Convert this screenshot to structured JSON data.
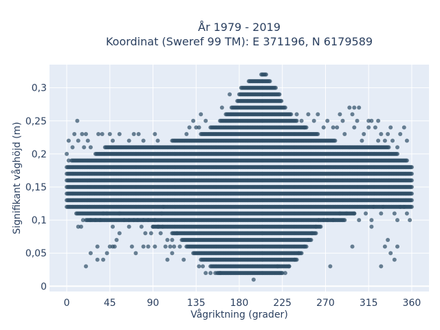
{
  "colors": {
    "plot_bg": "#e5ecf6",
    "grid": "#ffffff",
    "marker": "#2f4f66",
    "text": "#2a3f5f"
  },
  "chart_data": {
    "type": "scatter",
    "title_lines": [
      "År 1979 - 2019",
      "Koordinat (Sweref 99 TM): E 371196, N 6179589"
    ],
    "xlabel": "Vågriktning (grader)",
    "ylabel": "Signifikant våghöjd (m)",
    "xlim": [
      -18,
      378
    ],
    "ylim": [
      -0.008,
      0.335
    ],
    "xticks": [
      {
        "value": 0,
        "label": "0"
      },
      {
        "value": 45,
        "label": "45"
      },
      {
        "value": 90,
        "label": "90"
      },
      {
        "value": 135,
        "label": "135"
      },
      {
        "value": 180,
        "label": "180"
      },
      {
        "value": 225,
        "label": "225"
      },
      {
        "value": 270,
        "label": "270"
      },
      {
        "value": 315,
        "label": "315"
      },
      {
        "value": 360,
        "label": "360"
      }
    ],
    "yticks": [
      {
        "value": 0,
        "label": "0"
      },
      {
        "value": 0.05,
        "label": "0,05"
      },
      {
        "value": 0.1,
        "label": "0,1"
      },
      {
        "value": 0.15,
        "label": "0,15"
      },
      {
        "value": 0.2,
        "label": "0,2"
      },
      {
        "value": 0.25,
        "label": "0,25"
      },
      {
        "value": 0.3,
        "label": "0,3"
      }
    ],
    "grid": true,
    "marker_opacity": 0.7,
    "dense_bands": [
      {
        "y": 0.32,
        "x": [
          203,
          208
        ]
      },
      {
        "y": 0.31,
        "x": [
          190,
          212
        ]
      },
      {
        "y": 0.3,
        "x": [
          182,
          218
        ]
      },
      {
        "y": 0.29,
        "x": [
          180,
          222
        ]
      },
      {
        "y": 0.28,
        "x": [
          178,
          224
        ]
      },
      {
        "y": 0.27,
        "x": [
          172,
          228
        ]
      },
      {
        "y": 0.26,
        "x": [
          166,
          234
        ]
      },
      {
        "y": 0.25,
        "x": [
          160,
          240
        ]
      },
      {
        "y": 0.24,
        "x": [
          150,
          250
        ]
      },
      {
        "y": 0.23,
        "x": [
          140,
          262
        ]
      },
      {
        "y": 0.22,
        "x": [
          110,
          280
        ]
      },
      {
        "y": 0.21,
        "x": [
          40,
          336
        ]
      },
      {
        "y": 0.2,
        "x": [
          30,
          345
        ]
      },
      {
        "y": 0.19,
        "x": [
          5,
          355
        ]
      },
      {
        "y": 0.18,
        "x": [
          0,
          360
        ]
      },
      {
        "y": 0.17,
        "x": [
          0,
          360
        ]
      },
      {
        "y": 0.16,
        "x": [
          0,
          360
        ]
      },
      {
        "y": 0.15,
        "x": [
          0,
          360
        ]
      },
      {
        "y": 0.14,
        "x": [
          0,
          360
        ]
      },
      {
        "y": 0.13,
        "x": [
          0,
          360
        ]
      },
      {
        "y": 0.12,
        "x": [
          0,
          360
        ]
      },
      {
        "y": 0.11,
        "x": [
          10,
          300
        ]
      },
      {
        "y": 0.1,
        "x": [
          20,
          290
        ]
      },
      {
        "y": 0.09,
        "x": [
          90,
          265
        ]
      },
      {
        "y": 0.08,
        "x": [
          110,
          260
        ]
      },
      {
        "y": 0.07,
        "x": [
          120,
          255
        ]
      },
      {
        "y": 0.06,
        "x": [
          125,
          250
        ]
      },
      {
        "y": 0.05,
        "x": [
          132,
          245
        ]
      },
      {
        "y": 0.04,
        "x": [
          140,
          240
        ]
      },
      {
        "y": 0.03,
        "x": [
          150,
          232
        ]
      },
      {
        "y": 0.02,
        "x": [
          157,
          225
        ]
      }
    ],
    "scatter_points": [
      [
        11,
        0.25
      ],
      [
        8,
        0.23
      ],
      [
        16,
        0.23
      ],
      [
        20,
        0.23
      ],
      [
        33,
        0.23
      ],
      [
        37,
        0.23
      ],
      [
        45,
        0.23
      ],
      [
        55,
        0.23
      ],
      [
        70,
        0.23
      ],
      [
        75,
        0.23
      ],
      [
        92,
        0.23
      ],
      [
        2,
        0.22
      ],
      [
        12,
        0.22
      ],
      [
        22,
        0.22
      ],
      [
        48,
        0.22
      ],
      [
        65,
        0.22
      ],
      [
        80,
        0.22
      ],
      [
        95,
        0.22
      ],
      [
        0,
        0.2
      ],
      [
        2,
        0.19
      ],
      [
        6,
        0.21
      ],
      [
        18,
        0.21
      ],
      [
        25,
        0.21
      ],
      [
        12,
        0.09
      ],
      [
        15,
        0.09
      ],
      [
        17,
        0.1
      ],
      [
        25,
        0.1
      ],
      [
        30,
        0.1
      ],
      [
        35,
        0.1
      ],
      [
        38,
        0.11
      ],
      [
        42,
        0.11
      ],
      [
        55,
        0.11
      ],
      [
        60,
        0.1
      ],
      [
        65,
        0.1
      ],
      [
        70,
        0.1
      ],
      [
        74,
        0.1
      ],
      [
        80,
        0.1
      ],
      [
        85,
        0.1
      ],
      [
        92,
        0.1
      ],
      [
        95,
        0.09
      ],
      [
        100,
        0.09
      ],
      [
        90,
        0.09
      ],
      [
        78,
        0.09
      ],
      [
        65,
        0.09
      ],
      [
        48,
        0.09
      ],
      [
        55,
        0.08
      ],
      [
        52,
        0.07
      ],
      [
        50,
        0.06
      ],
      [
        42,
        0.05
      ],
      [
        38,
        0.04
      ],
      [
        32,
        0.04
      ],
      [
        25,
        0.05
      ],
      [
        20,
        0.03
      ],
      [
        32,
        0.06
      ],
      [
        45,
        0.06
      ],
      [
        48,
        0.06
      ],
      [
        68,
        0.06
      ],
      [
        72,
        0.05
      ],
      [
        80,
        0.06
      ],
      [
        85,
        0.06
      ],
      [
        92,
        0.06
      ],
      [
        88,
        0.08
      ],
      [
        82,
        0.08
      ],
      [
        103,
        0.06
      ],
      [
        108,
        0.06
      ],
      [
        112,
        0.06
      ],
      [
        105,
        0.07
      ],
      [
        110,
        0.07
      ],
      [
        105,
        0.04
      ],
      [
        110,
        0.05
      ],
      [
        118,
        0.06
      ],
      [
        122,
        0.04
      ],
      [
        96,
        0.09
      ],
      [
        98,
        0.08
      ],
      [
        115,
        0.08
      ],
      [
        99,
        0.11
      ],
      [
        101,
        0.12
      ],
      [
        138,
        0.03
      ],
      [
        142,
        0.03
      ],
      [
        145,
        0.02
      ],
      [
        150,
        0.02
      ],
      [
        155,
        0.02
      ],
      [
        160,
        0.02
      ],
      [
        195,
        0.01
      ],
      [
        220,
        0.03
      ],
      [
        228,
        0.02
      ],
      [
        232,
        0.03
      ],
      [
        238,
        0.04
      ],
      [
        242,
        0.05
      ],
      [
        248,
        0.06
      ],
      [
        252,
        0.07
      ],
      [
        256,
        0.08
      ],
      [
        260,
        0.09
      ],
      [
        263,
        0.1
      ],
      [
        268,
        0.1
      ],
      [
        272,
        0.1
      ],
      [
        278,
        0.1
      ],
      [
        285,
        0.11
      ],
      [
        292,
        0.11
      ],
      [
        300,
        0.11
      ],
      [
        275,
        0.03
      ],
      [
        298,
        0.06
      ],
      [
        305,
        0.1
      ],
      [
        312,
        0.11
      ],
      [
        318,
        0.1
      ],
      [
        318,
        0.09
      ],
      [
        320,
        0.12
      ],
      [
        330,
        0.12
      ],
      [
        328,
        0.11
      ],
      [
        342,
        0.11
      ],
      [
        345,
        0.1
      ],
      [
        348,
        0.12
      ],
      [
        352,
        0.12
      ],
      [
        335,
        0.07
      ],
      [
        332,
        0.06
      ],
      [
        338,
        0.05
      ],
      [
        342,
        0.04
      ],
      [
        345,
        0.06
      ],
      [
        328,
        0.03
      ],
      [
        355,
        0.11
      ],
      [
        358,
        0.1
      ],
      [
        240,
        0.26
      ],
      [
        245,
        0.25
      ],
      [
        248,
        0.24
      ],
      [
        252,
        0.26
      ],
      [
        258,
        0.25
      ],
      [
        262,
        0.26
      ],
      [
        268,
        0.24
      ],
      [
        272,
        0.25
      ],
      [
        278,
        0.24
      ],
      [
        282,
        0.24
      ],
      [
        285,
        0.26
      ],
      [
        288,
        0.25
      ],
      [
        290,
        0.23
      ],
      [
        295,
        0.27
      ],
      [
        298,
        0.26
      ],
      [
        300,
        0.24
      ],
      [
        303,
        0.25
      ],
      [
        308,
        0.22
      ],
      [
        310,
        0.23
      ],
      [
        315,
        0.24
      ],
      [
        318,
        0.25
      ],
      [
        322,
        0.24
      ],
      [
        325,
        0.22
      ],
      [
        328,
        0.23
      ],
      [
        332,
        0.22
      ],
      [
        335,
        0.23
      ],
      [
        338,
        0.24
      ],
      [
        340,
        0.22
      ],
      [
        345,
        0.21
      ],
      [
        348,
        0.23
      ],
      [
        352,
        0.24
      ],
      [
        355,
        0.22
      ],
      [
        300,
        0.27
      ],
      [
        305,
        0.27
      ],
      [
        315,
        0.25
      ],
      [
        325,
        0.25
      ],
      [
        128,
        0.24
      ],
      [
        132,
        0.25
      ],
      [
        135,
        0.24
      ],
      [
        138,
        0.24
      ],
      [
        125,
        0.23
      ],
      [
        140,
        0.26
      ],
      [
        145,
        0.25
      ],
      [
        170,
        0.29
      ],
      [
        162,
        0.27
      ]
    ]
  }
}
